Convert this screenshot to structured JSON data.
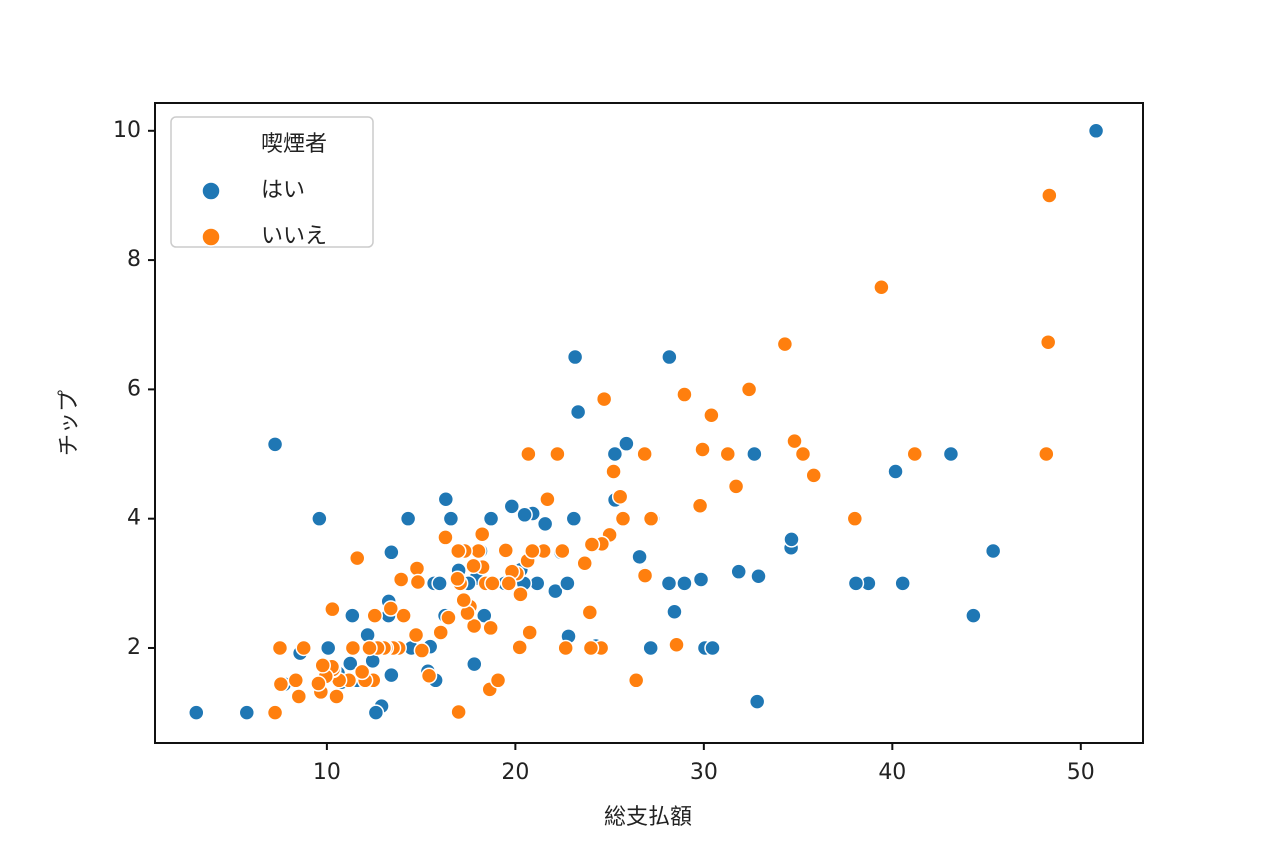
{
  "chart_data": {
    "type": "scatter",
    "x_label": "総支払額",
    "y_label": "チップ",
    "legend_title": "喫煙者",
    "legend_position": "upper left",
    "xlim": [
      0.88,
      53.3
    ],
    "ylim": [
      0.53,
      10.43
    ],
    "xticks": [
      10,
      20,
      30,
      40,
      50
    ],
    "yticks": [
      2,
      4,
      6,
      8,
      10
    ],
    "grid": false,
    "series": [
      {
        "name": "はい",
        "color": "#1f77b4",
        "x": [
          50.81,
          43.11,
          40.17,
          45.35,
          44.3,
          40.55,
          38.73,
          38.07,
          34.63,
          34.65,
          32.83,
          32.68,
          32.9,
          31.85,
          30.06,
          30.46,
          29.85,
          28.97,
          28.15,
          28.44,
          27.18,
          27.28,
          26.86,
          26.59,
          25.89,
          25.29,
          25.28,
          24.27,
          23.95,
          23.33,
          23.1,
          23.17,
          22.82,
          22.42,
          22.12,
          21.01,
          21.16,
          20.45,
          20.29,
          20.92,
          20.49,
          19.81,
          19.44,
          18.71,
          18.35,
          17.92,
          17.29,
          17.51,
          17.82,
          16.4,
          16.58,
          16.27,
          16.31,
          15.69,
          15.98,
          15.48,
          15.77,
          15.36,
          14.31,
          14.48,
          13.42,
          13.42,
          13.28,
          13.27,
          13.0,
          12.9,
          12.74,
          12.6,
          12.43,
          12.16,
          11.59,
          11.35,
          11.24,
          10.77,
          10.59,
          10.07,
          8.58,
          7.74,
          7.25,
          9.6,
          5.75,
          3.07,
          28.17,
          22.76,
          18.15,
          21.58,
          16.99
        ],
        "values": [
          10,
          5,
          4.73,
          3.5,
          2.5,
          3,
          3,
          3,
          3.55,
          3.68,
          1.17,
          5,
          3.11,
          3.18,
          2,
          2,
          3.06,
          3,
          3,
          2.56,
          2,
          4,
          3.14,
          3.41,
          5.16,
          4.29,
          5,
          2.03,
          2,
          5.65,
          4,
          6.5,
          2.18,
          3.48,
          2.88,
          3.5,
          3,
          3,
          3.21,
          4.08,
          4.06,
          4.19,
          3,
          4,
          2.5,
          3.08,
          3,
          3,
          1.75,
          2.5,
          4,
          2.5,
          4.3,
          3,
          3,
          2.02,
          1.5,
          1.64,
          4,
          2,
          3.48,
          1.58,
          2.72,
          2.5,
          2,
          1.1,
          2.01,
          1,
          1.8,
          2.2,
          1.5,
          2.5,
          1.76,
          1.47,
          1.61,
          2,
          1.92,
          1.44,
          5.15,
          4,
          1,
          1,
          6.5,
          3,
          3.5,
          3.92,
          3.2
        ]
      },
      {
        "name": "いいえ",
        "color": "#ff7f0e",
        "x": [
          48.27,
          48.17,
          48.33,
          39.42,
          41.19,
          38.01,
          35.83,
          34.81,
          35.26,
          34.3,
          32.4,
          31.71,
          31.27,
          30.4,
          29.93,
          29.8,
          28.97,
          28.55,
          27.2,
          26.88,
          26.41,
          25.56,
          25.0,
          25.71,
          24.59,
          24.71,
          24.06,
          24.55,
          23.68,
          24.01,
          22.49,
          22.67,
          21.7,
          21.5,
          20.65,
          20.69,
          20.76,
          20.23,
          20.27,
          20.08,
          19.82,
          19.65,
          19.49,
          18.43,
          18.78,
          18.29,
          18.69,
          18.26,
          18.24,
          18.04,
          17.78,
          17.81,
          17.59,
          17.46,
          17.31,
          17.07,
          16.97,
          16.29,
          16.93,
          16.45,
          16.04,
          15.42,
          15.04,
          14.73,
          14.78,
          14.83,
          14.07,
          13.94,
          13.81,
          13.51,
          13.39,
          13.13,
          13.03,
          12.69,
          12.46,
          12.54,
          12.26,
          12.03,
          11.87,
          11.38,
          11.17,
          11.61,
          10.65,
          10.51,
          10.34,
          10.33,
          10.29,
          10.27,
          9.94,
          9.78,
          9.68,
          9.55,
          8.77,
          8.51,
          8.35,
          7.56,
          7.51,
          7.25,
          17.26,
          18.64,
          19.08,
          20.9,
          22.23,
          23.95,
          25.21,
          26.86,
          16.99
        ],
        "values": [
          6.73,
          5,
          9,
          7.58,
          5,
          4,
          4.67,
          5.2,
          5,
          6.7,
          6,
          4.5,
          5,
          5.6,
          5.07,
          4.2,
          5.92,
          2.05,
          4,
          3.12,
          1.5,
          4.34,
          3.75,
          4,
          3.61,
          5.85,
          3.6,
          2,
          3.31,
          2,
          3.5,
          2,
          4.3,
          3.5,
          3.35,
          5,
          2.24,
          2.01,
          2.83,
          3.15,
          3.18,
          3,
          3.51,
          3,
          3,
          3.76,
          2.31,
          3.25,
          3.76,
          3.5,
          3.27,
          2.34,
          2.64,
          2.54,
          3.5,
          3,
          3.5,
          3.71,
          3.07,
          2.47,
          2.24,
          1.57,
          1.96,
          2.2,
          3.23,
          3.02,
          2.5,
          3.06,
          2,
          2,
          2.61,
          2,
          2,
          2,
          1.5,
          2.5,
          2,
          1.5,
          1.63,
          2,
          1.5,
          3.39,
          1.5,
          1.25,
          1.66,
          1.67,
          2.6,
          1.71,
          1.56,
          1.73,
          1.32,
          1.45,
          2,
          1.25,
          1.5,
          1.44,
          2,
          1,
          2.74,
          1.36,
          1.5,
          3.5,
          5,
          2.55,
          4.73,
          5,
          1.01
        ]
      }
    ]
  }
}
